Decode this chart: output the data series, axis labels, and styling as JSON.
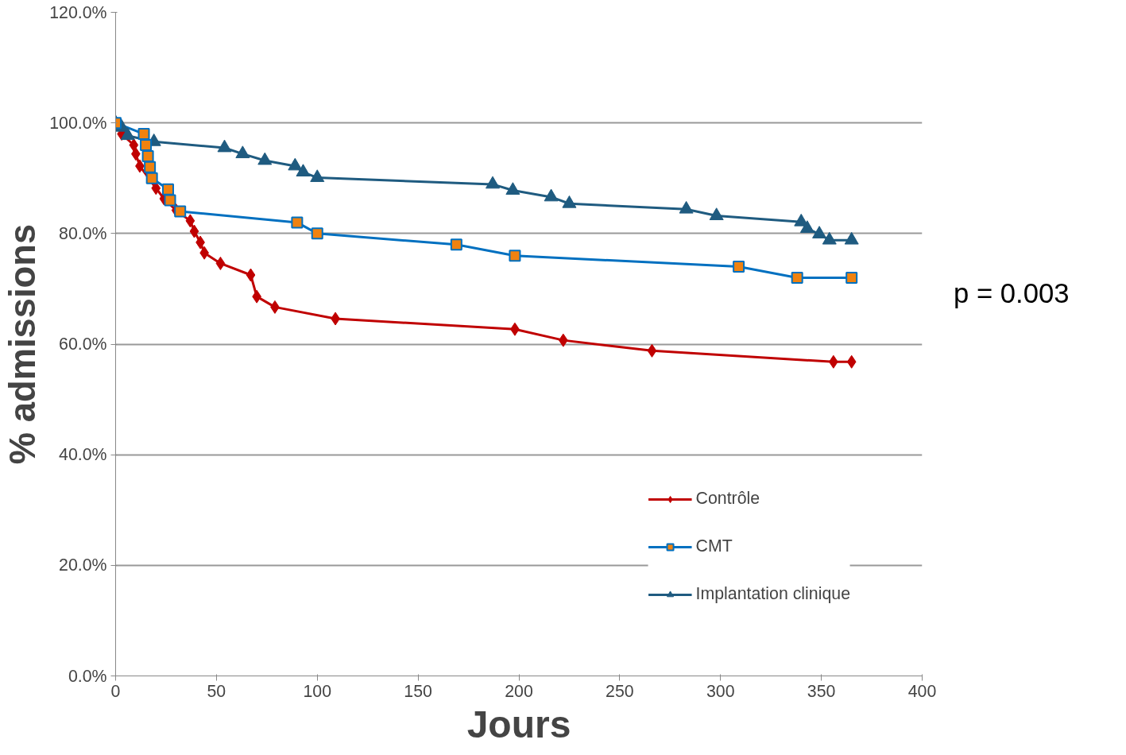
{
  "chart_data": {
    "type": "line",
    "xlabel": "Jours",
    "ylabel": "% admissions",
    "xlim": [
      0,
      400
    ],
    "ylim": [
      0,
      120
    ],
    "xticks": [
      0,
      50,
      100,
      150,
      200,
      250,
      300,
      350,
      400
    ],
    "yticks": [
      {
        "value": 0,
        "label": "0.0%"
      },
      {
        "value": 20,
        "label": "20.0%"
      },
      {
        "value": 40,
        "label": "40.0%"
      },
      {
        "value": 60,
        "label": "60.0%"
      },
      {
        "value": 80,
        "label": "80.0%"
      },
      {
        "value": 100,
        "label": "100.0%"
      },
      {
        "value": 120,
        "label": "120.0%"
      }
    ],
    "grid": "y",
    "legend": "right",
    "line_style": "solid",
    "annotations": [
      "p = 0.003"
    ],
    "series": [
      {
        "name": "Contrôle",
        "color": "#c00000",
        "marker": "diamond",
        "x": [
          0,
          3,
          9,
          10,
          12,
          20,
          24,
          30,
          37,
          39,
          42,
          44,
          52,
          67,
          70,
          79,
          109,
          198,
          222,
          266,
          356,
          365
        ],
        "values": [
          100,
          98,
          96,
          94.4,
          92.2,
          88.2,
          86.3,
          84.2,
          82.3,
          80.4,
          78.4,
          76.5,
          74.6,
          72.5,
          68.6,
          66.7,
          64.6,
          62.7,
          60.7,
          58.8,
          56.8,
          56.8
        ]
      },
      {
        "name": "CMT",
        "color": "#0070c0",
        "marker": "square",
        "x": [
          0,
          14,
          15,
          16,
          17,
          18,
          26,
          27,
          32,
          90,
          100,
          169,
          198,
          309,
          338,
          365
        ],
        "values": [
          100,
          98,
          96,
          94,
          92,
          90,
          88,
          86,
          84,
          82,
          80,
          78,
          76,
          74,
          72,
          72
        ]
      },
      {
        "name": "Implantation clinique",
        "color": "#1f5b80",
        "marker": "triangle",
        "x": [
          0,
          3,
          6,
          19,
          54,
          63,
          74,
          89,
          93,
          100,
          187,
          197,
          216,
          225,
          283,
          298,
          340,
          343,
          349,
          354,
          365
        ],
        "values": [
          100,
          99.2,
          97.7,
          96.6,
          95.5,
          94.4,
          93.2,
          92.2,
          91.1,
          90.1,
          88.9,
          87.8,
          86.6,
          85.4,
          84.4,
          83.2,
          82.1,
          80.9,
          79.9,
          78.8,
          78.8
        ]
      }
    ]
  }
}
